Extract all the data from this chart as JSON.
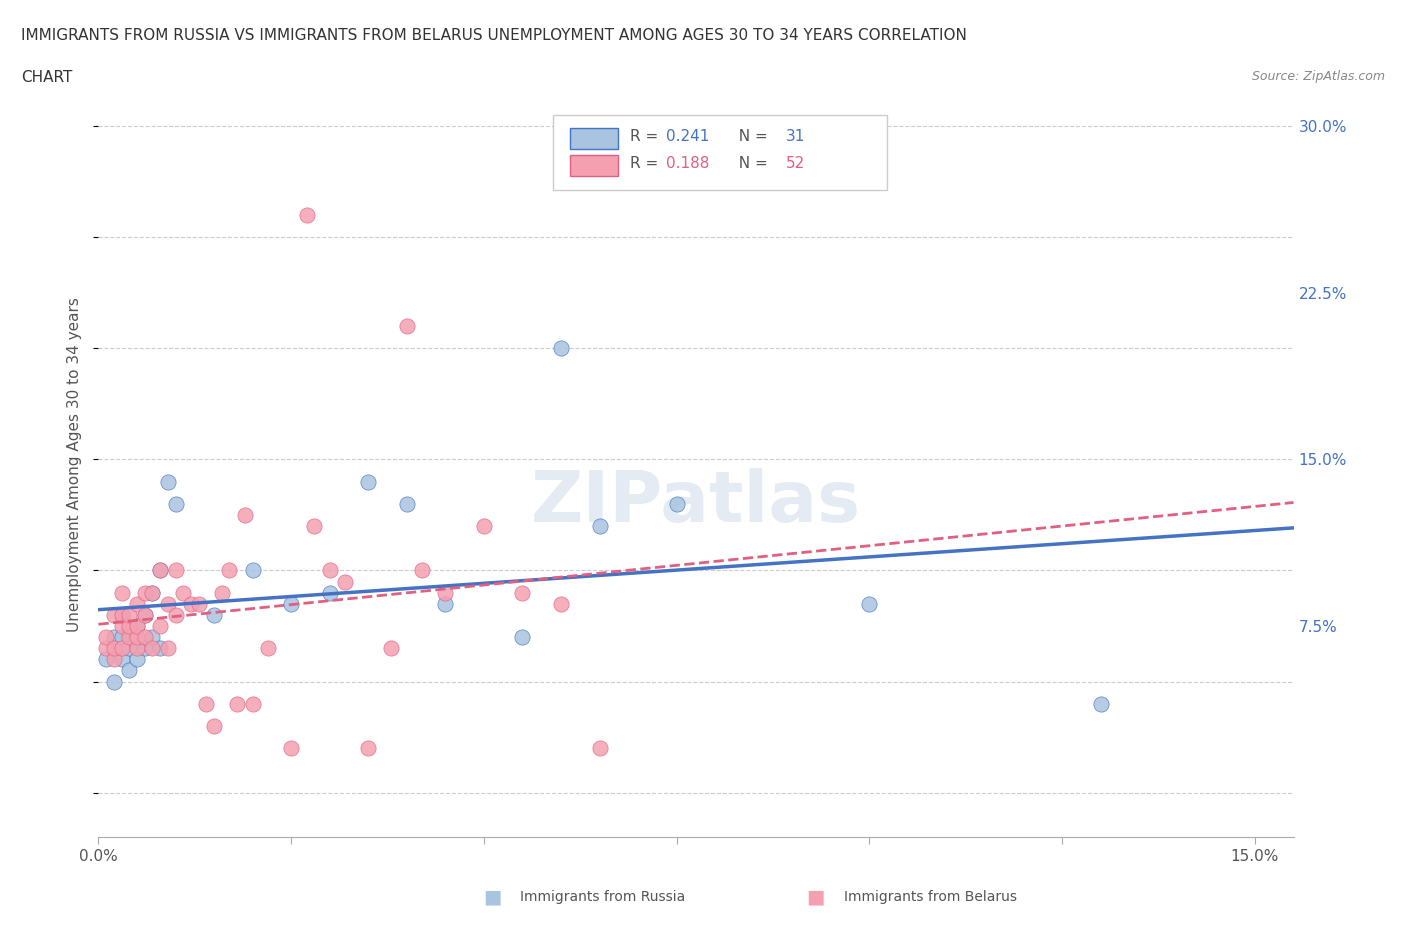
{
  "title_line1": "IMMIGRANTS FROM RUSSIA VS IMMIGRANTS FROM BELARUS UNEMPLOYMENT AMONG AGES 30 TO 34 YEARS CORRELATION",
  "title_line2": "CHART",
  "source_text": "Source: ZipAtlas.com",
  "xlabel": "",
  "ylabel": "Unemployment Among Ages 30 to 34 years",
  "x_ticks": [
    0.0,
    0.025,
    0.05,
    0.075,
    0.1,
    0.125,
    0.15
  ],
  "x_tick_labels": [
    "0.0%",
    "",
    "",
    "",
    "",
    "",
    "15.0%"
  ],
  "y_ticks_right": [
    0.0,
    0.075,
    0.15,
    0.225,
    0.3
  ],
  "y_tick_labels_right": [
    "",
    "7.5%",
    "15.0%",
    "22.5%",
    "30.0%"
  ],
  "xlim": [
    0.0,
    0.155
  ],
  "ylim": [
    -0.02,
    0.315
  ],
  "russia_r": 0.241,
  "russia_n": 31,
  "belarus_r": 0.188,
  "belarus_n": 52,
  "russia_color": "#a8c4e0",
  "belarus_color": "#f4a0b0",
  "russia_line_color": "#4472c4",
  "belarus_line_color": "#e06080",
  "background_color": "#ffffff",
  "grid_color": "#cccccc",
  "watermark": "ZIPatlas",
  "russia_x": [
    0.001,
    0.002,
    0.002,
    0.003,
    0.003,
    0.003,
    0.004,
    0.004,
    0.005,
    0.005,
    0.006,
    0.006,
    0.007,
    0.007,
    0.008,
    0.008,
    0.009,
    0.01,
    0.015,
    0.02,
    0.025,
    0.03,
    0.035,
    0.04,
    0.045,
    0.055,
    0.06,
    0.065,
    0.075,
    0.1,
    0.13
  ],
  "russia_y": [
    0.06,
    0.07,
    0.05,
    0.06,
    0.08,
    0.07,
    0.065,
    0.055,
    0.075,
    0.06,
    0.08,
    0.065,
    0.09,
    0.07,
    0.1,
    0.065,
    0.14,
    0.13,
    0.08,
    0.1,
    0.085,
    0.09,
    0.14,
    0.13,
    0.085,
    0.07,
    0.2,
    0.12,
    0.13,
    0.085,
    0.04
  ],
  "belarus_x": [
    0.001,
    0.001,
    0.002,
    0.002,
    0.002,
    0.003,
    0.003,
    0.003,
    0.003,
    0.004,
    0.004,
    0.004,
    0.005,
    0.005,
    0.005,
    0.005,
    0.006,
    0.006,
    0.006,
    0.007,
    0.007,
    0.008,
    0.008,
    0.009,
    0.009,
    0.01,
    0.01,
    0.011,
    0.012,
    0.013,
    0.014,
    0.015,
    0.016,
    0.017,
    0.018,
    0.019,
    0.02,
    0.022,
    0.025,
    0.027,
    0.028,
    0.03,
    0.032,
    0.035,
    0.038,
    0.04,
    0.042,
    0.045,
    0.05,
    0.055,
    0.06,
    0.065
  ],
  "belarus_y": [
    0.065,
    0.07,
    0.06,
    0.08,
    0.065,
    0.065,
    0.075,
    0.08,
    0.09,
    0.07,
    0.075,
    0.08,
    0.065,
    0.07,
    0.075,
    0.085,
    0.07,
    0.08,
    0.09,
    0.065,
    0.09,
    0.075,
    0.1,
    0.065,
    0.085,
    0.08,
    0.1,
    0.09,
    0.085,
    0.085,
    0.04,
    0.03,
    0.09,
    0.1,
    0.04,
    0.125,
    0.04,
    0.065,
    0.02,
    0.26,
    0.12,
    0.1,
    0.095,
    0.02,
    0.065,
    0.21,
    0.1,
    0.09,
    0.12,
    0.09,
    0.085,
    0.02
  ]
}
